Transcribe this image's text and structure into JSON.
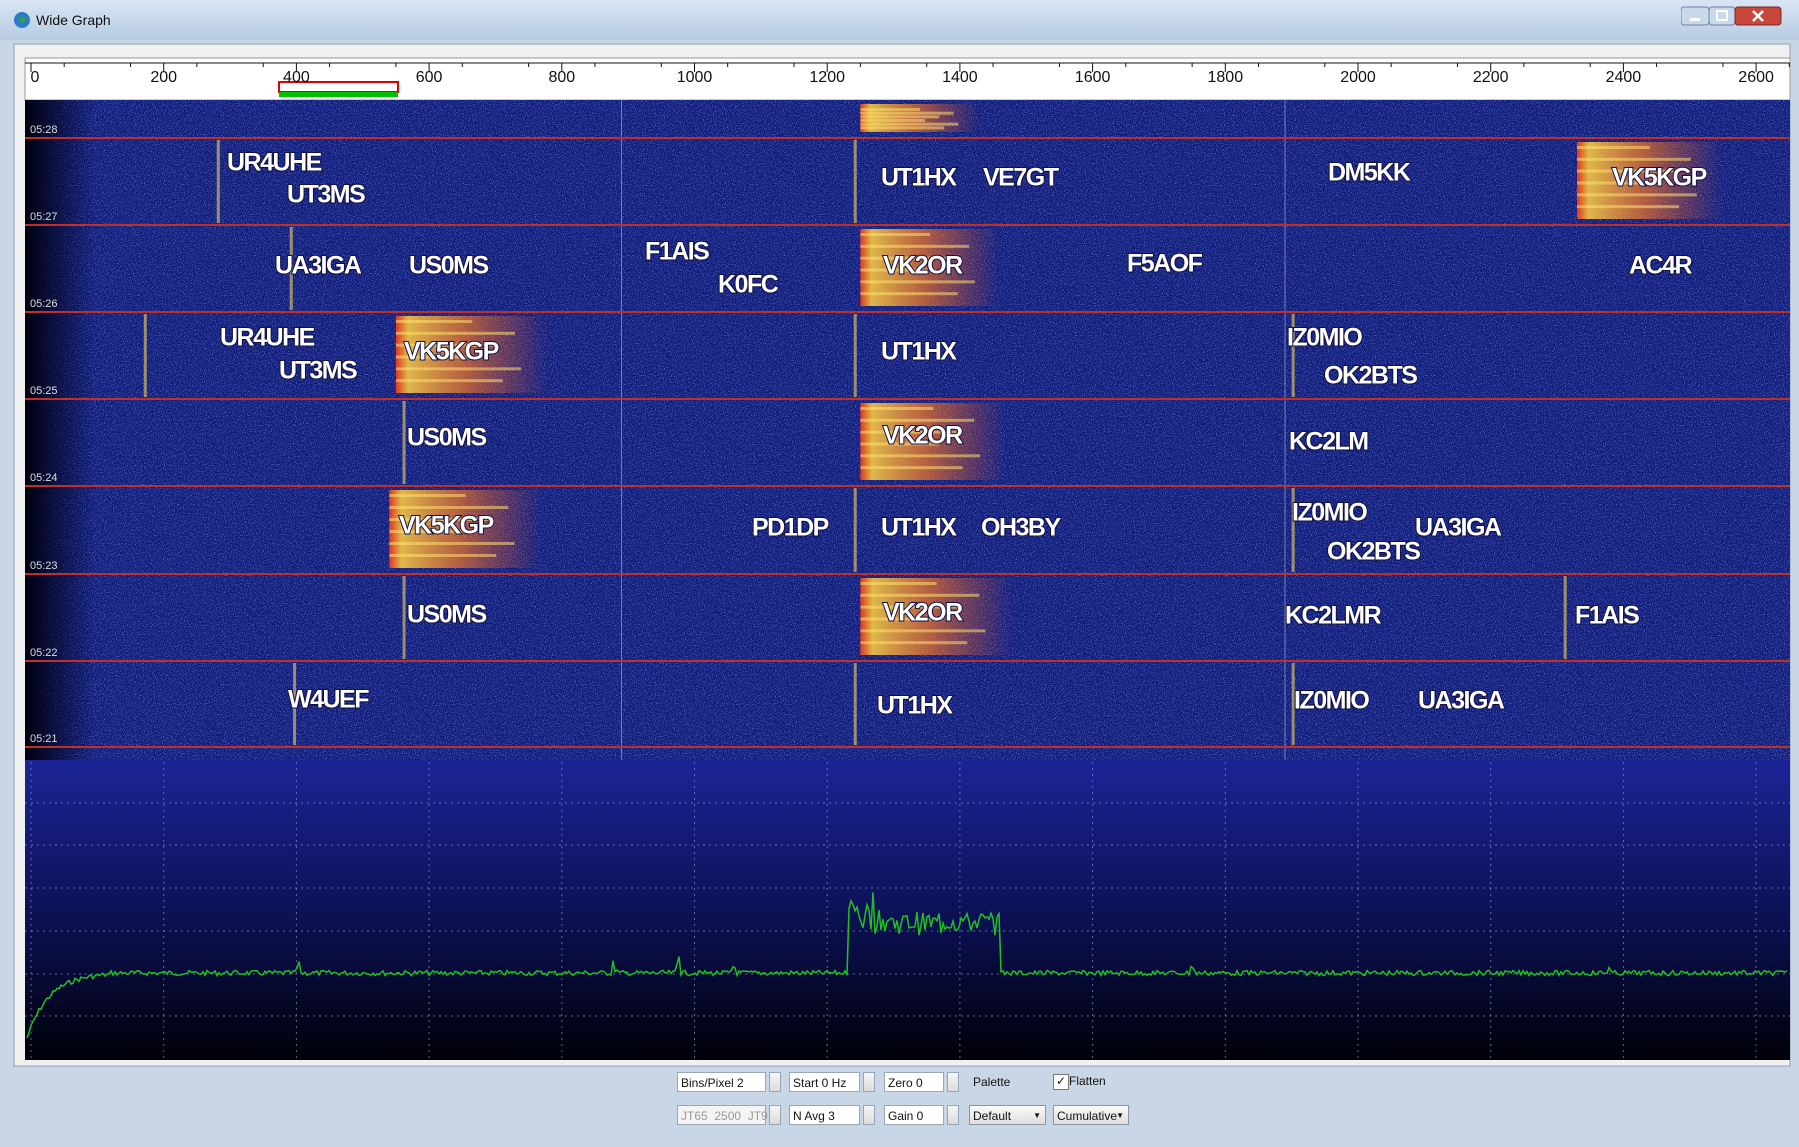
{
  "window": {
    "title": "Wide Graph"
  },
  "frequency_axis": {
    "ticks": [
      0,
      200,
      400,
      600,
      800,
      1000,
      1200,
      1400,
      1600,
      1800,
      2000,
      2200,
      2400,
      2600
    ]
  },
  "waterfall": {
    "time_labels": [
      "05:28",
      "05:27",
      "05:26",
      "05:25",
      "05:24",
      "05:23",
      "05:22",
      "05:21"
    ],
    "decodes": [
      "UR4UHE",
      "UT3MS",
      "UT1HX",
      "VE7GT",
      "DM5KK",
      "VK5KGP",
      "UA3IGA",
      "US0MS",
      "F1AIS",
      "K0FC",
      "VK2OR",
      "F5AOF",
      "AC4R",
      "UR4UHE",
      "UT3MS",
      "VK5KGP",
      "UT1HX",
      "IZ0MIO",
      "OK2BTS",
      "US0MS",
      "VK2OR",
      "KC2LM",
      "VK5KGP",
      "PD1DP",
      "UT1HX",
      "OH3BY",
      "IZ0MIO",
      "UA3IGA",
      "OK2BTS",
      "US0MS",
      "VK2OR",
      "KC2LMR",
      "F1AIS",
      "W4UEF",
      "UT1HX",
      "IZ0MIO",
      "UA3IGA"
    ]
  },
  "controls": {
    "bins_per_pixel": "Bins/Pixel 2",
    "start": "Start 0 Hz",
    "zero": "Zero 0",
    "palette_label": "Palette",
    "flatten": "Flatten",
    "mode": "JT65  2500  JT9",
    "n_avg": "N Avg 3",
    "gain": "Gain 0",
    "palette": "Default",
    "spectrum": "Cumulative"
  }
}
